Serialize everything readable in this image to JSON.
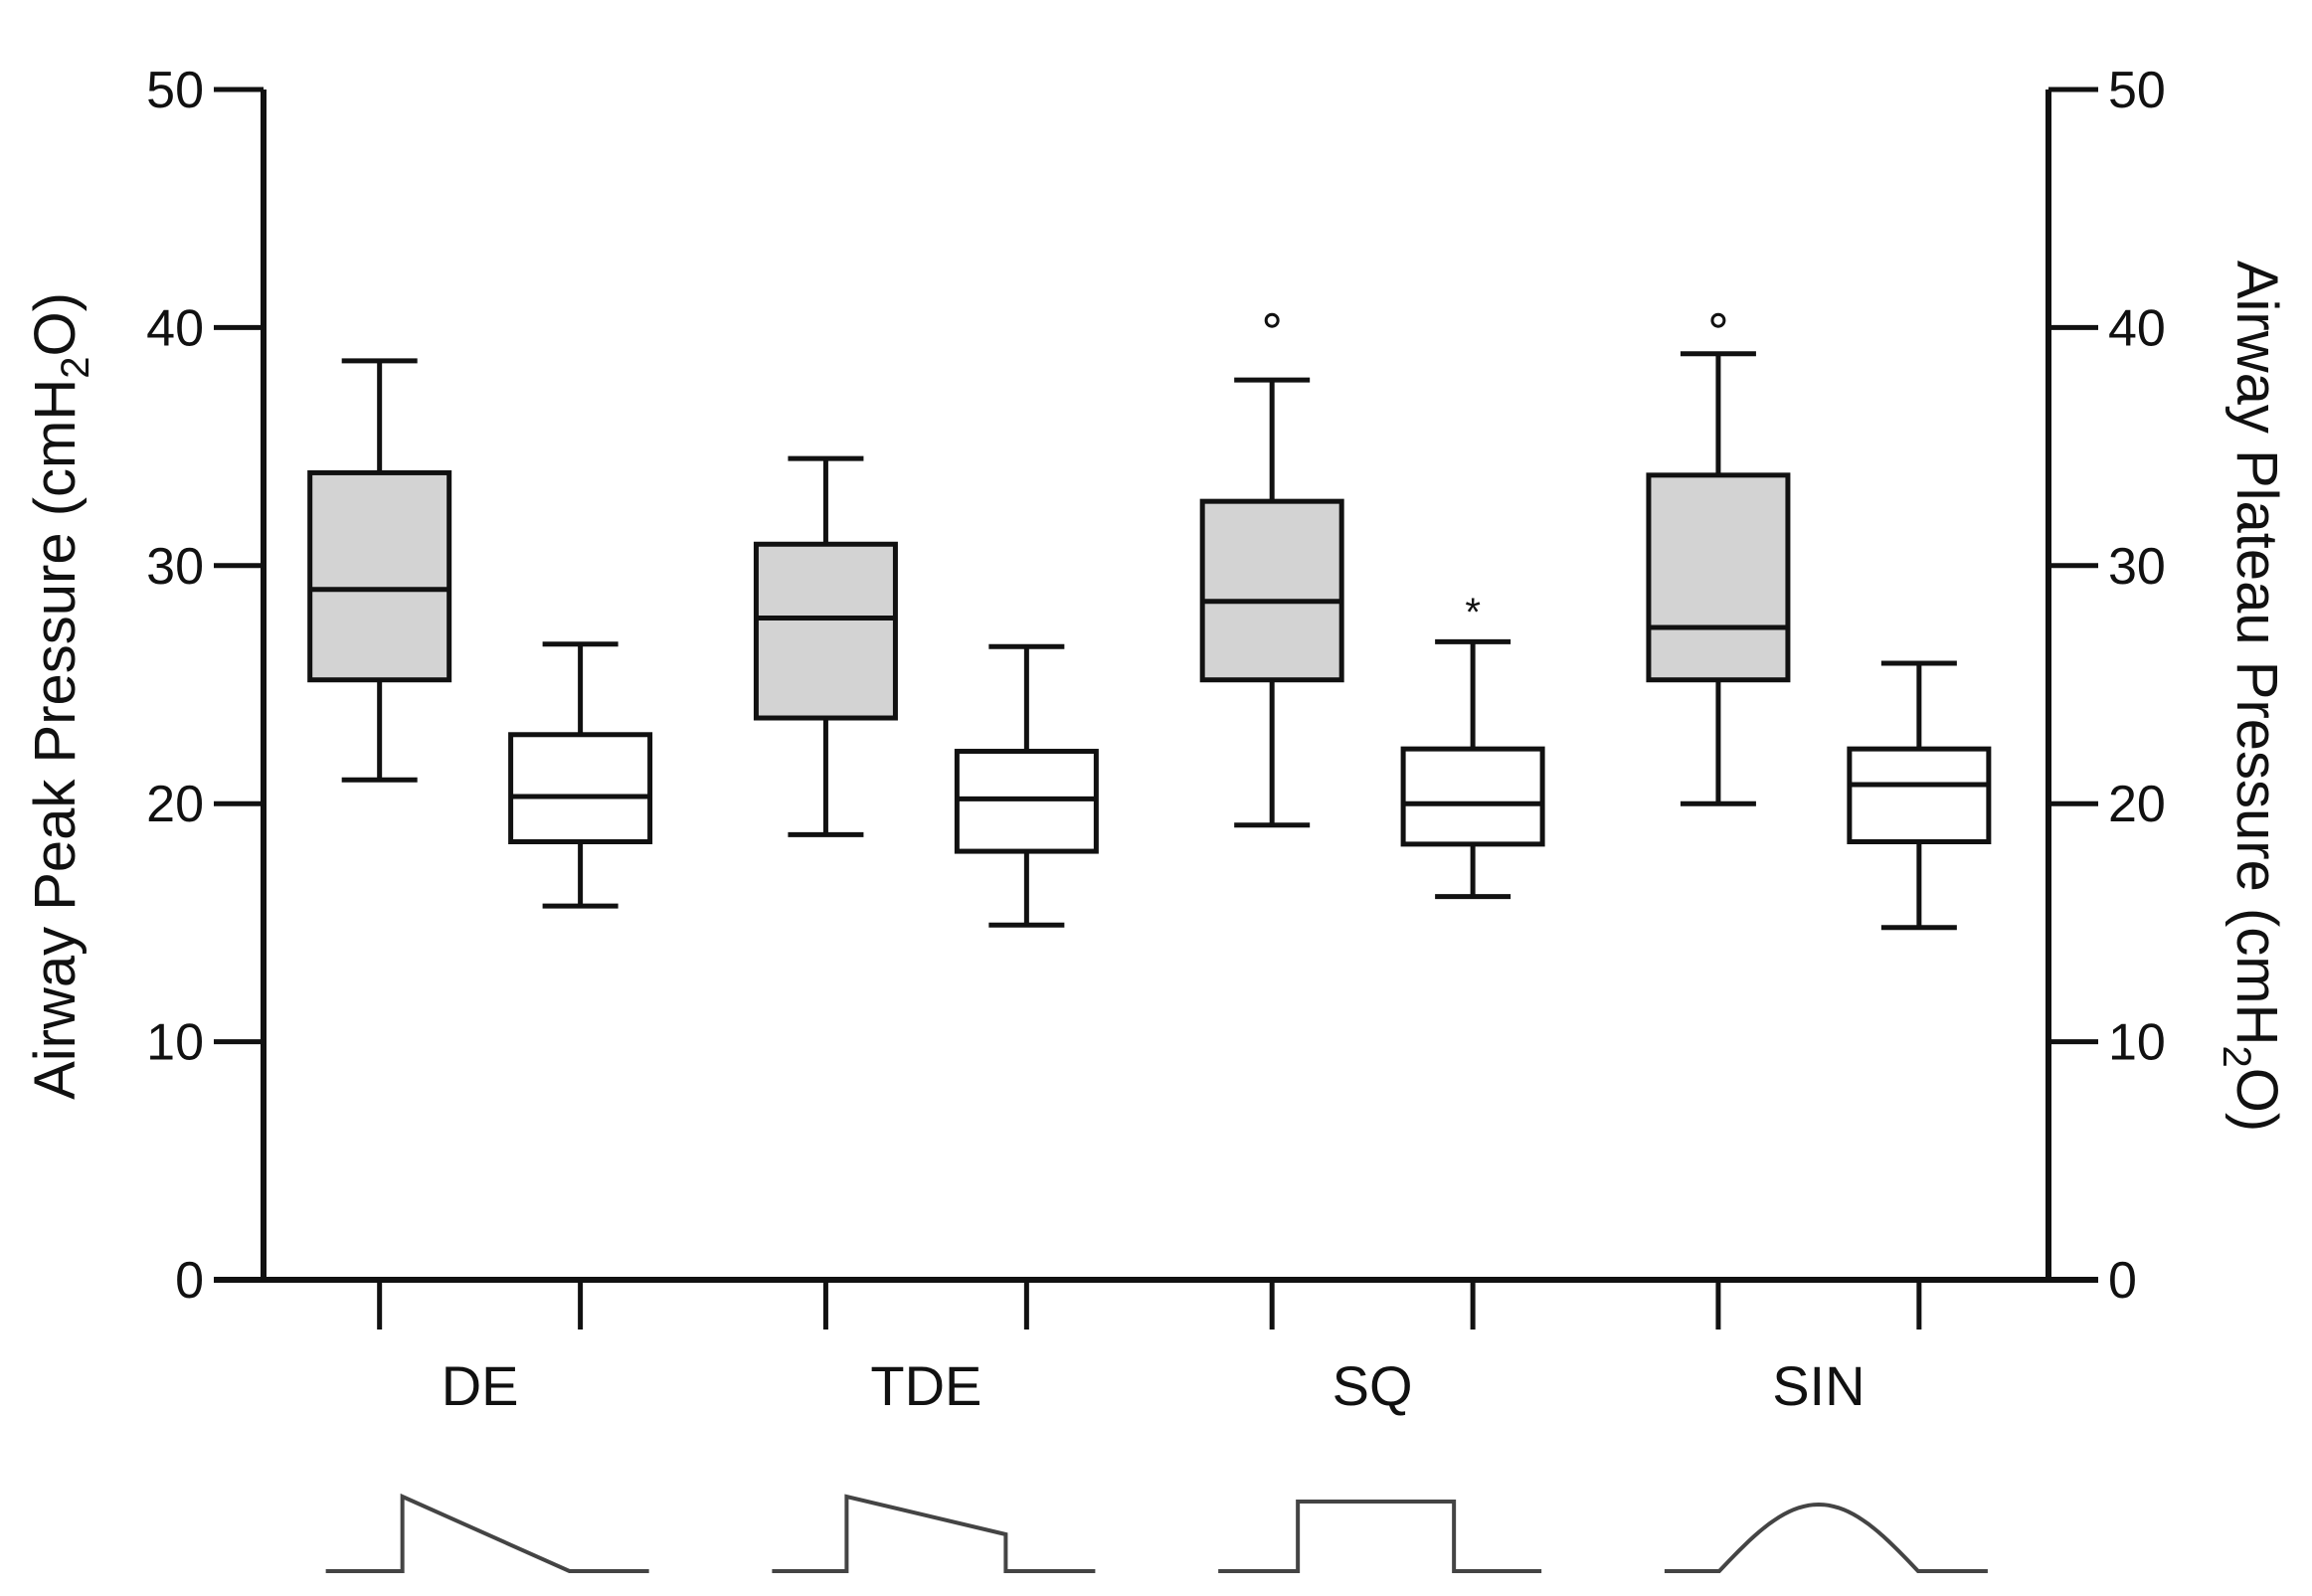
{
  "chart_data": {
    "type": "boxplot",
    "title": "",
    "y_left": {
      "label_main": "Airway Peak Pressure (cmH",
      "label_sub": "2",
      "label_end": "O)",
      "range": [
        0,
        50
      ],
      "ticks": [
        "0",
        "10",
        "20",
        "30",
        "40",
        "50"
      ]
    },
    "y_right": {
      "label_main": "Airway Plateau  Pressure (cmH",
      "label_sub": "2",
      "label_end": "O)",
      "range": [
        0,
        50
      ],
      "ticks": [
        "0",
        "10",
        "20",
        "30",
        "40",
        "50"
      ]
    },
    "groups": [
      {
        "label": "DE",
        "waveform": "decelerating",
        "peak": {
          "min": 21,
          "q1": 25.2,
          "median": 29,
          "q3": 33.9,
          "max": 38.6,
          "outliers": []
        },
        "plateau": {
          "min": 15.7,
          "q1": 18.4,
          "median": 20.3,
          "q3": 22.9,
          "max": 26.7,
          "outliers": []
        }
      },
      {
        "label": "TDE",
        "waveform": "truncated-decelerating",
        "peak": {
          "min": 18.7,
          "q1": 23.6,
          "median": 27.8,
          "q3": 30.9,
          "max": 34.5,
          "outliers": []
        },
        "plateau": {
          "min": 14.9,
          "q1": 18,
          "median": 20.2,
          "q3": 22.2,
          "max": 26.6,
          "outliers": []
        }
      },
      {
        "label": "SQ",
        "waveform": "square",
        "peak": {
          "min": 19.1,
          "q1": 25.2,
          "median": 28.5,
          "q3": 32.7,
          "max": 37.8,
          "outliers": [
            {
              "value": 40.3,
              "marker": "°"
            }
          ]
        },
        "plateau": {
          "min": 16.1,
          "q1": 18.3,
          "median": 20,
          "q3": 22.3,
          "max": 26.8,
          "outliers": [
            {
              "value": 28.4,
              "marker": "*"
            }
          ]
        }
      },
      {
        "label": "SIN",
        "waveform": "sinusoidal",
        "peak": {
          "min": 20,
          "q1": 25.2,
          "median": 27.4,
          "q3": 33.8,
          "max": 38.9,
          "outliers": [
            {
              "value": 40.3,
              "marker": "°"
            }
          ]
        },
        "plateau": {
          "min": 14.8,
          "q1": 18.4,
          "median": 20.8,
          "q3": 22.3,
          "max": 25.9,
          "outliers": []
        }
      }
    ],
    "colors": {
      "peak_fill": "#d3d3d3",
      "plateau_fill": "#ffffff",
      "stroke": "#111111",
      "waveform": "#444444"
    }
  }
}
